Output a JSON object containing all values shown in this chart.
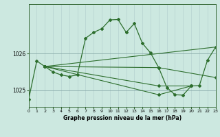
{
  "background_color": "#cce8e0",
  "plot_bg_color": "#cce8e0",
  "line_color": "#2d6e2d",
  "marker_style": "D",
  "marker_size": 2,
  "grid_color": "#b0cccc",
  "xlabel": "Graphe pression niveau de la mer (hPa)",
  "xlim": [
    0,
    23
  ],
  "ylim": [
    1024.55,
    1027.35
  ],
  "yticks": [
    1025,
    1026
  ],
  "xticks": [
    0,
    1,
    2,
    3,
    4,
    5,
    6,
    7,
    8,
    9,
    10,
    11,
    12,
    13,
    14,
    15,
    16,
    17,
    18,
    19,
    20,
    21,
    22,
    23
  ],
  "lines": [
    [
      0,
      1024.75,
      1,
      1025.8,
      2,
      1025.65,
      3,
      1025.5,
      4,
      1025.42,
      5,
      1025.38,
      6,
      1025.42,
      7,
      1026.42,
      8,
      1026.58,
      9,
      1026.68,
      10,
      1026.92,
      11,
      1026.93,
      12,
      1026.58,
      13,
      1026.82,
      14,
      1026.28,
      15,
      1026.02,
      16,
      1025.62,
      17,
      1025.08,
      18,
      1024.88,
      19,
      1024.87,
      20,
      1025.12,
      21,
      1025.13,
      22,
      1025.82,
      23,
      1026.18
    ],
    [
      2,
      1025.65,
      23,
      1026.18
    ],
    [
      2,
      1025.65,
      16,
      1025.62,
      23,
      1025.35
    ],
    [
      2,
      1025.65,
      16,
      1025.12,
      20,
      1025.12
    ],
    [
      2,
      1025.65,
      16,
      1024.88,
      20,
      1025.12
    ]
  ]
}
